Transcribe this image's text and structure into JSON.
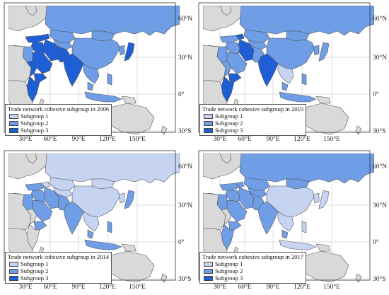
{
  "colors": {
    "ocean": "#ffffff",
    "land": "#d9d9d9",
    "border": "#555555",
    "subgroup1": "#c6d4f2",
    "subgroup2": "#6f9de6",
    "subgroup3": "#1f5fd6"
  },
  "axes": {
    "lon_labels": [
      "30°E",
      "60°E",
      "90°E",
      "120°E",
      "150°E"
    ],
    "lat_labels": [
      "60°N",
      "30°N",
      "0°",
      "30°S"
    ]
  },
  "panels": [
    {
      "legend_title": "Trade network cohesive subgroup in 2006",
      "legend_items": [
        "Subgroup 1",
        "Subgroup 2",
        "Subgroup 3"
      ]
    },
    {
      "legend_title": "Trade network cohesive subgroup in 2010",
      "legend_items": [
        "Subgroup 1",
        "Subgroup 2",
        "Subgroup 3"
      ]
    },
    {
      "legend_title": "Trade network cohesive subgroup in 2014",
      "legend_items": [
        "Subgroup 1",
        "Subgroup 2",
        "Subgroup 3"
      ]
    },
    {
      "legend_title": "Trade network cohesive subgroup in 2017",
      "legend_items": [
        "Subgroup 1",
        "Subgroup 2",
        "Subgroup 3"
      ]
    }
  ]
}
